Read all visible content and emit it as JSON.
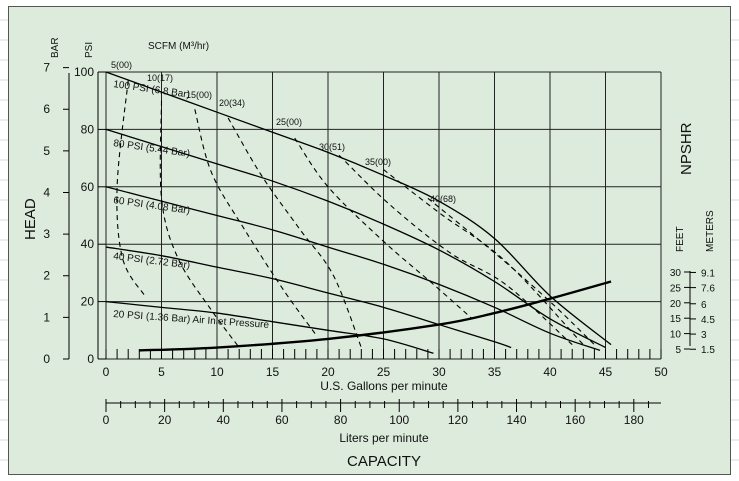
{
  "chart_data": {
    "type": "line",
    "x_axis": {
      "label": "U.S. Gallons per minute",
      "range": [
        0,
        50
      ],
      "ticks": [
        "0",
        "5",
        "10",
        "15",
        "20",
        "25",
        "30",
        "35",
        "40",
        "45",
        "50"
      ]
    },
    "x2_axis": {
      "label": "Liters per minute",
      "range": [
        0,
        189.27
      ],
      "ticks": [
        "0",
        "20",
        "40",
        "60",
        "80",
        "100",
        "120",
        "140",
        "160",
        "180"
      ]
    },
    "caption": "CAPACITY",
    "y_axis": {
      "label": "HEAD",
      "psi_title": "PSI",
      "psi_ticks": [
        "0",
        "20",
        "40",
        "60",
        "80",
        "100"
      ],
      "bar_title": "BAR",
      "bar_ticks": [
        "0",
        "1",
        "2",
        "3",
        "4",
        "5",
        "6",
        "7"
      ],
      "range": [
        0,
        100
      ]
    },
    "scfm_title": "SCFM (M³/hr)",
    "npshr": {
      "title": "NPSHR",
      "feet_title": "FEET",
      "meters_title": "METERS",
      "feet_ticks": [
        "5",
        "10",
        "15",
        "20",
        "25",
        "30"
      ],
      "meters_ticks": [
        "1.5",
        "3",
        "4.5",
        "6",
        "7.6",
        "9.1"
      ]
    },
    "series": [
      {
        "name": "100 PSI (6.8 Bar)",
        "x": [
          0,
          5,
          10,
          15,
          20,
          25,
          30,
          35,
          40,
          45.5
        ],
        "y": [
          100,
          93,
          86,
          79,
          72,
          64,
          55,
          42,
          22,
          5
        ]
      },
      {
        "name": "80 PSI (5.44 Bar)",
        "x": [
          0,
          5,
          10,
          15,
          20,
          25,
          30,
          35,
          40,
          45
        ],
        "y": [
          80,
          74,
          68,
          62,
          55,
          47,
          38,
          27,
          14,
          4
        ]
      },
      {
        "name": "60 PSI (4.08 Bar)",
        "x": [
          0,
          5,
          10,
          15,
          20,
          25,
          30,
          35,
          40,
          44.5
        ],
        "y": [
          60,
          55,
          50,
          45,
          39,
          33,
          26,
          18,
          9,
          3
        ]
      },
      {
        "name": "40 PSI (2.72 Bar)",
        "x": [
          0,
          5,
          10,
          15,
          20,
          25,
          30,
          35,
          36.5
        ],
        "y": [
          39,
          36,
          32,
          28,
          23,
          18,
          12,
          6,
          4
        ]
      },
      {
        "name": "20 PSI (1.36 Bar) Air Inlet Pressure",
        "x": [
          0,
          5,
          10,
          15,
          20,
          25,
          29.5
        ],
        "y": [
          20,
          18,
          16,
          13,
          10,
          7,
          2
        ]
      }
    ],
    "air_consumption": [
      {
        "label": "5(00)",
        "x": [
          2.0,
          1.0,
          1.5,
          3.5
        ],
        "y": [
          97,
          60,
          35,
          22
        ]
      },
      {
        "label": "10(17)",
        "x": [
          5.0,
          5.0,
          6.5,
          9.5,
          12.0
        ],
        "y": [
          90,
          56,
          35,
          17,
          4
        ]
      },
      {
        "label": "15(00)",
        "x": [
          8.0,
          9.5,
          12.5,
          16.0,
          19.0
        ],
        "y": [
          87,
          65,
          45,
          24,
          8
        ]
      },
      {
        "label": "20(34)",
        "x": [
          11.0,
          14.0,
          17.5,
          20.5,
          23.0
        ],
        "y": [
          84,
          64,
          45,
          29,
          4
        ]
      },
      {
        "label": "25(00)",
        "x": [
          17.0,
          20.0,
          25.0,
          29.5,
          33.0
        ],
        "y": [
          77,
          60,
          41,
          26,
          14
        ]
      },
      {
        "label": "30(51)",
        "x": [
          21.0,
          25.5,
          31.0,
          36.0,
          42.0
        ],
        "y": [
          71,
          54,
          37,
          26,
          5
        ]
      },
      {
        "label": "35(00)",
        "x": [
          25.0,
          30.0,
          36.0,
          43.0
        ],
        "y": [
          66,
          51,
          34,
          5
        ]
      },
      {
        "label": "40(68)",
        "x": [
          29.0,
          35.0,
          40.0,
          44.0
        ],
        "y": [
          56,
          37,
          20,
          5
        ]
      }
    ],
    "npshr_curve": {
      "x": [
        3,
        10,
        20,
        30,
        35,
        40,
        45.5
      ],
      "y": [
        3,
        4,
        7,
        12,
        16,
        21,
        27
      ]
    },
    "grid": true
  }
}
